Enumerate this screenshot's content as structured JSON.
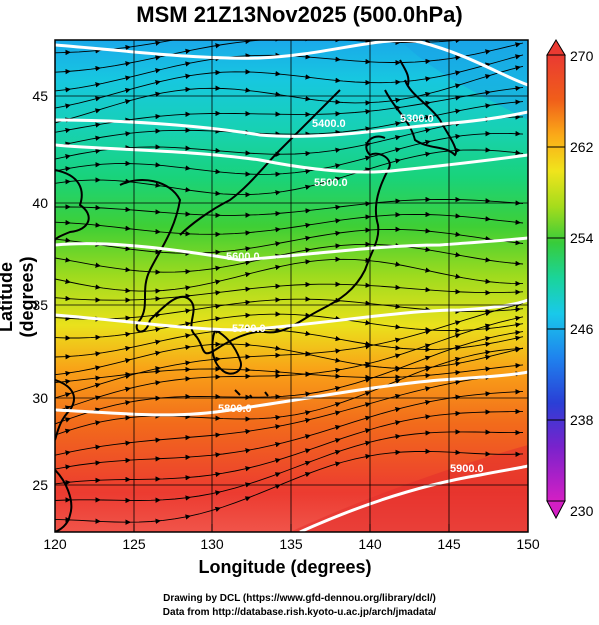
{
  "title": "MSM 21Z13Nov2025 (500.0hPa)",
  "axes": {
    "xlabel": "Longitude (degrees)",
    "ylabel": "Latitude  (degrees)",
    "x_ticks": [
      "120",
      "125",
      "130",
      "135",
      "140",
      "145",
      "150"
    ],
    "y_ticks": [
      "25",
      "30",
      "35",
      "40",
      "45"
    ],
    "x_range": [
      120,
      150
    ],
    "y_range": [
      22.5,
      47.5
    ]
  },
  "colorbar": {
    "ticks": [
      "270",
      "262",
      "254",
      "246",
      "238",
      "230"
    ],
    "min": 230,
    "max": 270,
    "colors": [
      "#d41fc4",
      "#7a22cc",
      "#2a3fd6",
      "#1f82ee",
      "#19c9ea",
      "#1ad49a",
      "#38cc3a",
      "#a5dc1c",
      "#f0e41c",
      "#fbaa18",
      "#f05e1a",
      "#ea3a32",
      "#f0544a"
    ]
  },
  "contours": {
    "height_labels": [
      "5500.0",
      "5800.0",
      "5900.0"
    ],
    "level_labels": [
      {
        "id": "c1",
        "text": "5300.0"
      },
      {
        "id": "c2",
        "text": "5400.0"
      },
      {
        "id": "c3",
        "text": "5500.0"
      },
      {
        "id": "c4",
        "text": "5600.0"
      },
      {
        "id": "c5",
        "text": "5700.0"
      },
      {
        "id": "c6",
        "text": "5800.0"
      },
      {
        "id": "c7",
        "text": "5900.0"
      }
    ]
  },
  "map_style": {
    "grid": true,
    "coastline_color": "#000000",
    "contour_color": "#ffffff",
    "streamline_color": "#000000"
  },
  "credits": {
    "line1": "Drawing by DCL (https://www.gfd-dennou.org/library/dcl/)",
    "line2": "Data from http://database.rish.kyoto-u.ac.jp/arch/jmadata/"
  }
}
